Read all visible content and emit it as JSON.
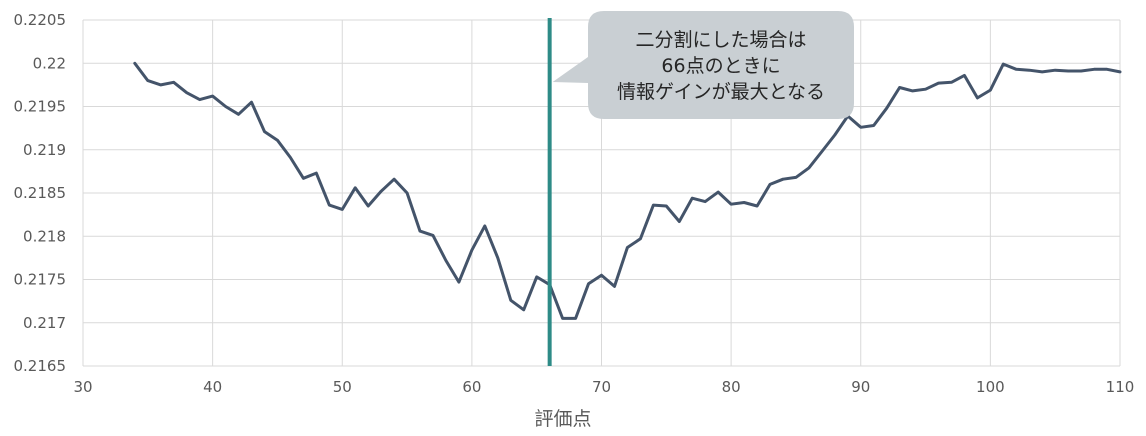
{
  "chart_data": {
    "type": "line",
    "title": "",
    "xlabel": "評価点",
    "ylabel": "",
    "xlim": [
      30,
      110
    ],
    "ylim": [
      0.2165,
      0.2205
    ],
    "x_ticks": [
      30,
      40,
      50,
      60,
      70,
      80,
      90,
      100,
      110
    ],
    "y_ticks": [
      "0.2165",
      "0.217",
      "0.2175",
      "0.218",
      "0.2185",
      "0.219",
      "0.2195",
      "0.22",
      "0.2205"
    ],
    "grid": true,
    "colors": {
      "line": "#44546A",
      "marker_line": "#2E8B87",
      "callout": "#C9CFD3"
    },
    "marker_x": 66,
    "annotation": {
      "lines": [
        "二分割にした場合は",
        "66点のときに",
        "情報ゲインが最大となる"
      ]
    },
    "series": [
      {
        "x": [
          34,
          35,
          36,
          37,
          38,
          39,
          40,
          41,
          42,
          43,
          44,
          45,
          46,
          47,
          48,
          49,
          50,
          51,
          52,
          53,
          54,
          55,
          56,
          57,
          58,
          59,
          60,
          61,
          62,
          63,
          64,
          65,
          66,
          67,
          68,
          69,
          70,
          71,
          72,
          73,
          74,
          75,
          76,
          77,
          78,
          79,
          80,
          81,
          82,
          83,
          84,
          85,
          86,
          87,
          88,
          89,
          90,
          91,
          92,
          93,
          94,
          95,
          96,
          97,
          98,
          99,
          100,
          101,
          102,
          103,
          104,
          105,
          106,
          107,
          108,
          109,
          110
        ],
        "values": [
          0.22,
          0.2198,
          0.21975,
          0.21978,
          0.21966,
          0.21958,
          0.21962,
          0.2195,
          0.21941,
          0.21955,
          0.21921,
          0.21911,
          0.21891,
          0.21867,
          0.21873,
          0.21836,
          0.21831,
          0.21856,
          0.21835,
          0.21852,
          0.21866,
          0.2185,
          0.21806,
          0.21801,
          0.21772,
          0.21747,
          0.21784,
          0.21812,
          0.21775,
          0.21726,
          0.21715,
          0.21753,
          0.21744,
          0.21705,
          0.21705,
          0.21745,
          0.21755,
          0.21742,
          0.21787,
          0.21797,
          0.21836,
          0.21835,
          0.21817,
          0.21844,
          0.2184,
          0.21851,
          0.21837,
          0.21839,
          0.21835,
          0.2186,
          0.21866,
          0.21868,
          0.21879,
          0.21898,
          0.21917,
          0.21939,
          0.21926,
          0.21928,
          0.21948,
          0.21972,
          0.21968,
          0.2197,
          0.21977,
          0.21978,
          0.21986,
          0.2196,
          0.21969,
          0.21999,
          0.21993,
          0.21992,
          0.2199,
          0.21992,
          0.21991,
          0.21991,
          0.21993,
          0.21993,
          0.2199
        ]
      }
    ]
  }
}
